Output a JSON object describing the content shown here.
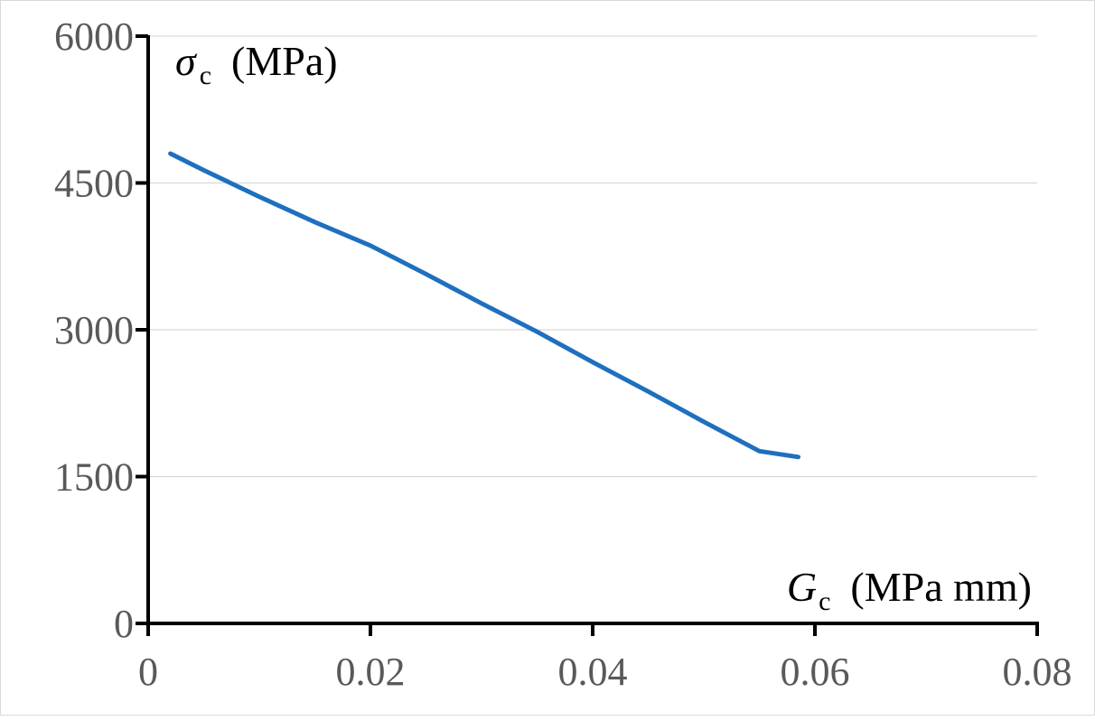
{
  "chart_data": {
    "type": "line",
    "title": "",
    "xlabel": {
      "symbol": "G",
      "subscript": "c",
      "unit": "(MPa mm)"
    },
    "ylabel": {
      "symbol": "σ",
      "subscript": "c",
      "unit": "(MPa)"
    },
    "xlim": [
      0,
      0.08
    ],
    "ylim": [
      0,
      6000
    ],
    "x_ticks": [
      0,
      0.02,
      0.04,
      0.06,
      0.08
    ],
    "x_tick_labels": [
      "0",
      "0.02",
      "0.04",
      "0.06",
      "0.08"
    ],
    "y_ticks": [
      0,
      1500,
      3000,
      4500,
      6000
    ],
    "y_tick_labels": [
      "0",
      "1500",
      "3000",
      "4500",
      "6000"
    ],
    "grid": {
      "horizontal": true,
      "vertical": false
    },
    "legend": "none",
    "series": [
      {
        "color": "#1f6fbf",
        "x": [
          0.002,
          0.005,
          0.01,
          0.015,
          0.02,
          0.025,
          0.03,
          0.035,
          0.04,
          0.045,
          0.05,
          0.055,
          0.0585
        ],
        "y": [
          4800,
          4630,
          4360,
          4100,
          3860,
          3570,
          3270,
          2980,
          2670,
          2370,
          2060,
          1760,
          1700
        ]
      }
    ]
  }
}
